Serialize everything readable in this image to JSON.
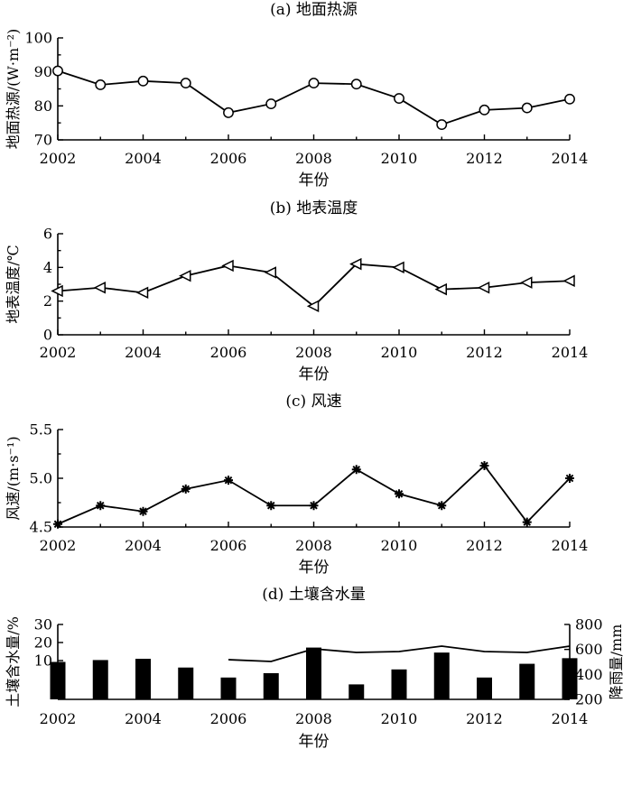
{
  "chart_data": [
    {
      "type": "line",
      "title": "(a) 地面热源",
      "xlabel": "年份",
      "ylabel": "地面热源/(W·m⁻²)",
      "xlim": [
        2002,
        2014
      ],
      "ylim": [
        70,
        100
      ],
      "xticks": [
        "2002",
        "2004",
        "2006",
        "2008",
        "2010",
        "2012",
        "2014"
      ],
      "yticks": [
        "70",
        "80",
        "90",
        "100"
      ],
      "marker": "circle",
      "series": [
        {
          "x": [
            2002,
            2003,
            2004,
            2005,
            2006,
            2007,
            2008,
            2009,
            2010,
            2011,
            2012,
            2013,
            2014
          ],
          "values": [
            90.3,
            86.2,
            87.3,
            86.7,
            78.0,
            80.6,
            86.7,
            86.4,
            82.2,
            74.5,
            78.8,
            79.4,
            82.0
          ]
        }
      ]
    },
    {
      "type": "line",
      "title": "(b) 地表温度",
      "xlabel": "年份",
      "ylabel": "地表温度/℃",
      "xlim": [
        2002,
        2014
      ],
      "ylim": [
        0,
        6
      ],
      "xticks": [
        "2002",
        "2004",
        "2006",
        "2008",
        "2010",
        "2012",
        "2014"
      ],
      "yticks": [
        "0",
        "2",
        "4",
        "6"
      ],
      "marker": "triangle-left",
      "series": [
        {
          "x": [
            2002,
            2003,
            2004,
            2005,
            2006,
            2007,
            2008,
            2009,
            2010,
            2011,
            2012,
            2013,
            2014
          ],
          "values": [
            2.6,
            2.8,
            2.5,
            3.5,
            4.1,
            3.7,
            1.7,
            4.2,
            4.0,
            2.7,
            2.8,
            3.1,
            3.2
          ]
        }
      ]
    },
    {
      "type": "line",
      "title": "(c) 风速",
      "xlabel": "年份",
      "ylabel": "风速/(m·s⁻¹)",
      "xlim": [
        2002,
        2014
      ],
      "ylim": [
        4.5,
        5.5
      ],
      "xticks": [
        "2002",
        "2004",
        "2006",
        "2008",
        "2010",
        "2012",
        "2014"
      ],
      "yticks": [
        "4.5",
        "5.0",
        "5.5"
      ],
      "marker": "asterisk",
      "series": [
        {
          "x": [
            2002,
            2003,
            2004,
            2005,
            2006,
            2007,
            2008,
            2009,
            2010,
            2011,
            2012,
            2013,
            2014
          ],
          "values": [
            4.53,
            4.72,
            4.66,
            4.89,
            4.98,
            4.72,
            4.72,
            5.09,
            4.84,
            4.72,
            5.13,
            4.55,
            5.0
          ]
        }
      ]
    },
    {
      "type": "bar",
      "title": "(d) 土壤含水量",
      "xlabel": "年份",
      "ylabel": "土壤含水量/%",
      "y2label": "降雨量/mm",
      "xlim": [
        2002,
        2014
      ],
      "xticks": [
        "2002",
        "2004",
        "2006",
        "2008",
        "2010",
        "2012",
        "2014"
      ],
      "yticks": [
        "10",
        "20",
        "30"
      ],
      "y2lim": [
        200,
        800
      ],
      "y2ticks": [
        "200",
        "400",
        "600",
        "800"
      ],
      "series": [
        {
          "type": "bar",
          "axis": "right",
          "x": [
            2002,
            2003,
            2004,
            2005,
            2006,
            2007,
            2008,
            2009,
            2010,
            2011,
            2012,
            2013,
            2014
          ],
          "values": [
            500,
            515,
            525,
            455,
            375,
            410,
            615,
            320,
            440,
            575,
            375,
            485,
            530
          ]
        },
        {
          "type": "line",
          "axis": "left",
          "x": [
            2006,
            2007,
            2008,
            2009,
            2010,
            2011,
            2012,
            2013,
            2014
          ],
          "values": [
            10.5,
            9.5,
            16.5,
            14.5,
            15.0,
            18.0,
            15.0,
            14.5,
            18.0
          ]
        }
      ]
    }
  ]
}
